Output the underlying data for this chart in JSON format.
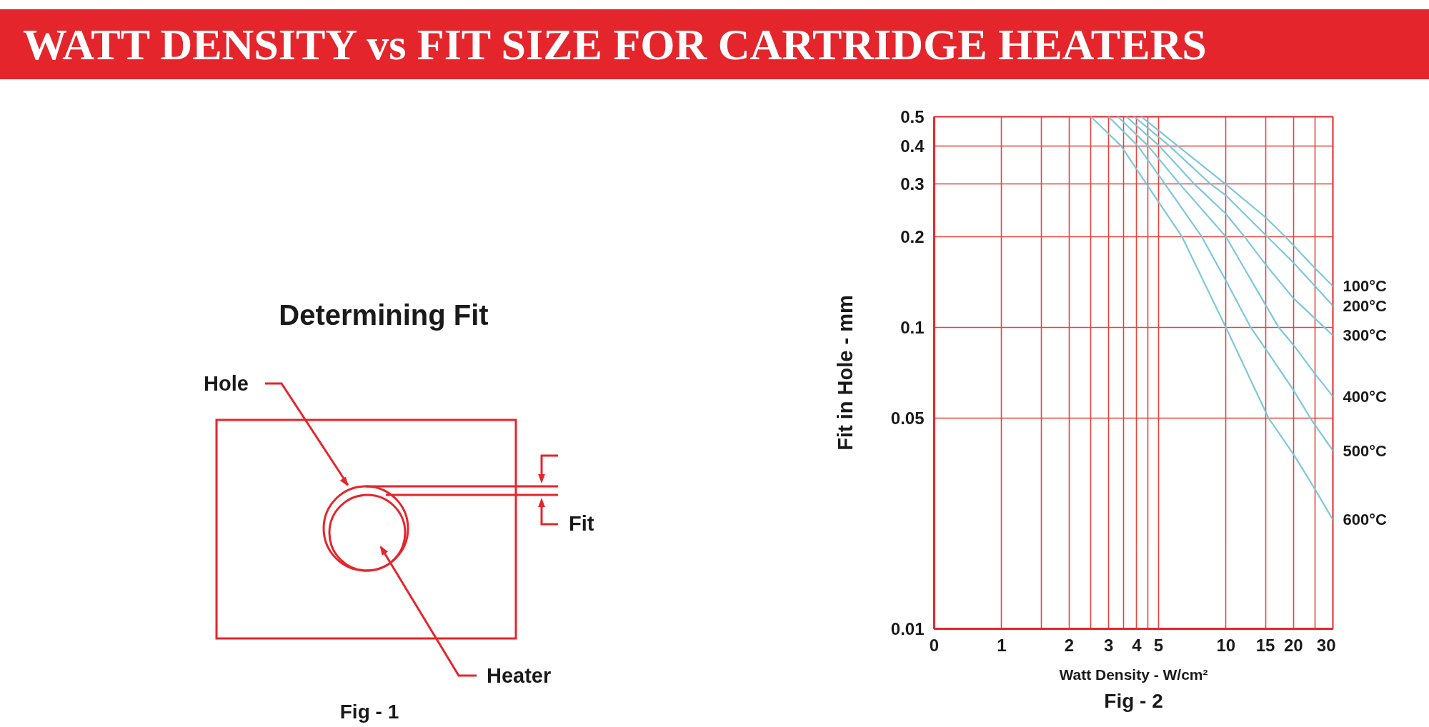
{
  "chart_data": {
    "type": "line",
    "title": "WATT DENSITY vs FIT SIZE FOR CARTRIDGE HEATERS",
    "xlabel": "Watt Density - W/cm²",
    "ylabel": "Fit in Hole - mm",
    "annotations": [
      "Determining Fit",
      "Hole",
      "Fit",
      "Heater",
      "Fig - 1",
      "Fig - 2"
    ],
    "log": "xy",
    "grid": true,
    "xlim": [
      0.5,
      30
    ],
    "xticks": [
      {
        "value": 0.5,
        "label": "0"
      },
      1,
      {
        "value": 1.5,
        "label": null
      },
      2,
      {
        "value": 2.5,
        "label": null
      },
      3,
      {
        "value": 3.5,
        "label": null
      },
      4,
      {
        "value": 4.5,
        "label": null
      },
      5,
      10,
      15,
      20,
      {
        "value": 25,
        "label": null
      },
      30
    ],
    "ylim": [
      0.01,
      0.5
    ],
    "yticks": [
      0.01,
      0.05,
      0.1,
      0.2,
      0.3,
      0.4,
      0.5
    ],
    "series": [
      {
        "name": "100°C",
        "color": "#7cc8dc",
        "x": [
          4.2,
          6.1,
          9.9,
          15,
          18.4,
          25,
          30
        ],
        "values": [
          0.5,
          0.4,
          0.3,
          0.232,
          0.2,
          0.157,
          0.137
        ]
      },
      {
        "name": "200°C",
        "color": "#7cc8dc",
        "x": [
          3.9,
          5.6,
          8.5,
          10,
          15.3,
          20,
          25,
          30
        ],
        "values": [
          0.5,
          0.4,
          0.3,
          0.274,
          0.2,
          0.164,
          0.137,
          0.118
        ]
      },
      {
        "name": "300°C",
        "color": "#7cc8dc",
        "x": [
          3.6,
          5.05,
          7.2,
          10,
          12.1,
          15,
          20,
          25,
          30
        ],
        "values": [
          0.5,
          0.4,
          0.3,
          0.238,
          0.2,
          0.162,
          0.125,
          0.107,
          0.094
        ]
      },
      {
        "name": "400°C",
        "color": "#7cc8dc",
        "x": [
          3.3,
          4.5,
          6.2,
          10,
          15,
          17.2,
          20,
          25,
          30
        ],
        "values": [
          0.5,
          0.4,
          0.3,
          0.2,
          0.119,
          0.1,
          0.0875,
          0.07,
          0.059
        ]
      },
      {
        "name": "500°C",
        "color": "#7cc8dc",
        "x": [
          3.0,
          4.05,
          5.33,
          7.8,
          10,
          12.9,
          15,
          20,
          23.8,
          30
        ],
        "values": [
          0.5,
          0.4,
          0.3,
          0.2,
          0.143,
          0.1,
          0.085,
          0.062,
          0.05,
          0.039
        ]
      },
      {
        "name": "600°C",
        "color": "#7cc8dc",
        "x": [
          2.5,
          3.41,
          4.41,
          6.37,
          10,
          15.5,
          20,
          25,
          30
        ],
        "values": [
          0.5,
          0.4,
          0.3,
          0.2,
          0.1,
          0.05,
          0.038,
          0.029,
          0.023
        ]
      }
    ]
  }
}
